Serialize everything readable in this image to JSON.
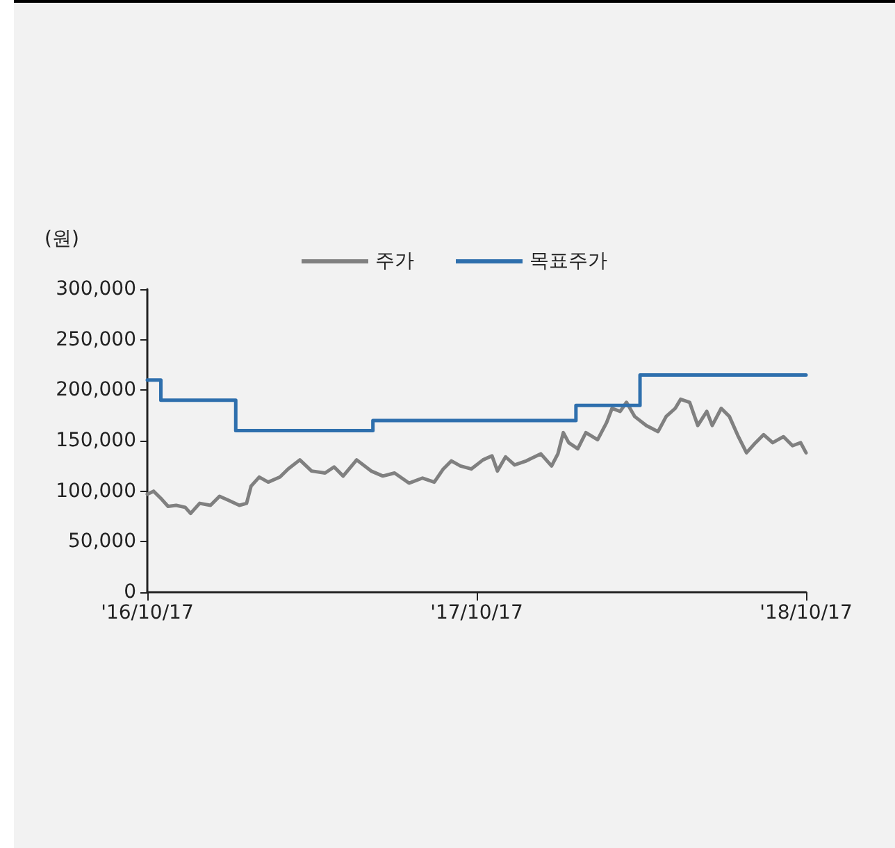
{
  "chart_data": {
    "type": "line",
    "ylabel": "(원)",
    "legend": "top",
    "grid": false,
    "marker": "none",
    "line_style": "solid",
    "xlim": [
      "2016-10-17",
      "2018-10-17"
    ],
    "xticks": [
      {
        "value": "2016-10-17",
        "label": "'16/10/17"
      },
      {
        "value": "2017-10-17",
        "label": "'17/10/17"
      },
      {
        "value": "2018-10-17",
        "label": "'18/10/17"
      }
    ],
    "ylim": [
      0,
      300000
    ],
    "yticks": [
      0,
      {
        "value": 50000,
        "label": "50,000"
      },
      {
        "value": 100000,
        "label": "100,000"
      },
      {
        "value": 150000,
        "label": "150,000"
      },
      {
        "value": 200000,
        "label": "200,000"
      },
      {
        "value": 250000,
        "label": "250,000"
      },
      {
        "value": 300000,
        "label": "300,000"
      }
    ],
    "series": [
      {
        "name": "주가",
        "type": "line",
        "color": "#808080",
        "x": [
          "2016-10-17",
          "2016-10-24",
          "2016-11-02",
          "2016-11-09",
          "2016-11-18",
          "2016-11-28",
          "2016-12-04",
          "2016-12-14",
          "2016-12-26",
          "2017-01-05",
          "2017-01-15",
          "2017-01-27",
          "2017-02-04",
          "2017-02-09",
          "2017-02-18",
          "2017-02-28",
          "2017-03-13",
          "2017-03-22",
          "2017-04-04",
          "2017-04-17",
          "2017-05-02",
          "2017-05-12",
          "2017-05-22",
          "2017-06-06",
          "2017-06-22",
          "2017-07-05",
          "2017-07-18",
          "2017-08-03",
          "2017-08-18",
          "2017-08-31",
          "2017-09-10",
          "2017-09-19",
          "2017-09-29",
          "2017-10-11",
          "2017-10-24",
          "2017-11-03",
          "2017-11-09",
          "2017-11-18",
          "2017-11-28",
          "2017-12-11",
          "2017-12-27",
          "2018-01-08",
          "2018-01-15",
          "2018-01-21",
          "2018-01-27",
          "2018-02-06",
          "2018-02-15",
          "2018-02-28",
          "2018-03-10",
          "2018-03-16",
          "2018-03-25",
          "2018-04-01",
          "2018-04-10",
          "2018-04-23",
          "2018-05-06",
          "2018-05-15",
          "2018-05-25",
          "2018-05-31",
          "2018-06-10",
          "2018-06-19",
          "2018-06-29",
          "2018-07-05",
          "2018-07-15",
          "2018-07-24",
          "2018-08-03",
          "2018-08-12",
          "2018-08-22",
          "2018-08-31",
          "2018-09-10",
          "2018-09-22",
          "2018-10-02",
          "2018-10-11",
          "2018-10-17"
        ],
        "values": [
          97000,
          100000,
          92000,
          85000,
          86000,
          84000,
          78000,
          88000,
          86000,
          95000,
          91000,
          86000,
          88000,
          105000,
          114000,
          109000,
          114000,
          122000,
          131000,
          120000,
          118000,
          124000,
          115000,
          131000,
          120000,
          115000,
          118000,
          108000,
          113000,
          109000,
          122000,
          130000,
          125000,
          122000,
          131000,
          135000,
          120000,
          134000,
          126000,
          130000,
          137000,
          125000,
          137000,
          158000,
          148000,
          142000,
          158000,
          151000,
          168000,
          182000,
          179000,
          188000,
          174000,
          165000,
          159000,
          174000,
          182000,
          191000,
          188000,
          165000,
          179000,
          165000,
          182000,
          174000,
          154000,
          138000,
          148000,
          156000,
          148000,
          154000,
          145000,
          148000,
          138000
        ]
      },
      {
        "name": "목표주가",
        "type": "step",
        "color": "#2e6fad",
        "x": [
          "2016-10-17",
          "2016-11-01",
          "2017-01-23",
          "2017-06-24",
          "2018-02-04",
          "2018-04-16",
          "2018-10-17"
        ],
        "values": [
          210000,
          190000,
          160000,
          170000,
          185000,
          215000,
          215000
        ]
      }
    ]
  }
}
